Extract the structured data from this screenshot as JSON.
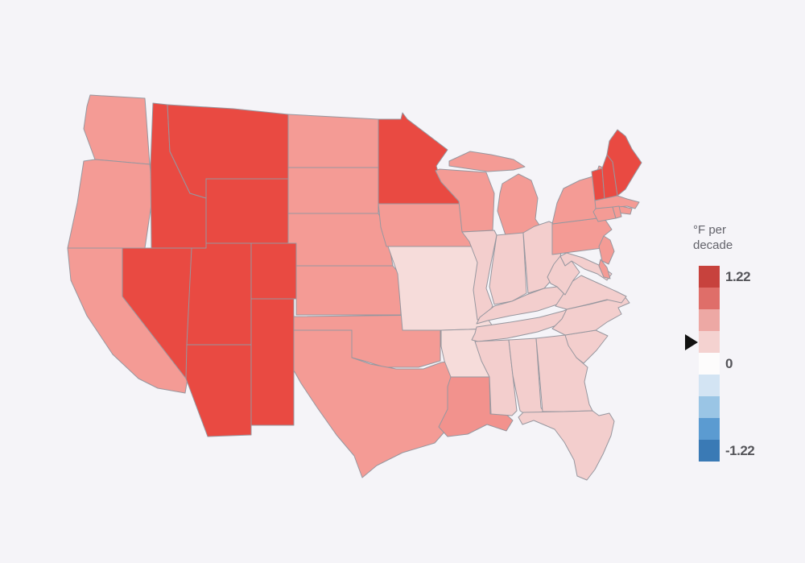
{
  "background": "#f5f4f8",
  "legend": {
    "title_line1": "°F per",
    "title_line2": "decade",
    "colors": [
      "#c7423d",
      "#df6e69",
      "#eda8a4",
      "#f4d2d0",
      "#fdfcfc",
      "#d3e4f3",
      "#9ac5e5",
      "#5b9bd1",
      "#3a7ab5"
    ],
    "ticks": [
      {
        "label": "1.22",
        "band": 0
      },
      {
        "label": "0",
        "band": 4
      },
      {
        "label": "-1.22",
        "band": 8
      }
    ],
    "marker": {
      "band": 3,
      "color": "#111111"
    }
  },
  "chart_data": {
    "type": "heatmap",
    "subtype": "us-state-choropleth",
    "title": "",
    "unit_label": "°F per decade",
    "scale": {
      "max": 1.22,
      "mid": 0,
      "min": -1.22,
      "palette_type": "diverging-red-blue",
      "bands": 9
    },
    "palette": {
      "strong-red": "#e94a42",
      "salmon": "#f49b95",
      "deep-salmon": "#f2928d",
      "light-pink": "#f3cecd",
      "pale-pink": "#f6dcda"
    },
    "states": {
      "WA": "salmon",
      "OR": "salmon",
      "CA": "salmon",
      "ID": "strong-red",
      "NV": "strong-red",
      "UT": "strong-red",
      "AZ": "strong-red",
      "MT": "strong-red",
      "WY": "strong-red",
      "CO": "strong-red",
      "NM": "strong-red",
      "ND": "salmon",
      "SD": "salmon",
      "NE": "salmon",
      "KS": "salmon",
      "OK": "salmon",
      "TX": "salmon",
      "MN": "strong-red",
      "IA": "salmon",
      "MO": "pale-pink",
      "AR": "pale-pink",
      "LA": "deep-salmon",
      "WI": "salmon",
      "MI": "salmon",
      "IL": "light-pink",
      "IN": "light-pink",
      "OH": "light-pink",
      "KY": "light-pink",
      "TN": "light-pink",
      "MS": "light-pink",
      "AL": "light-pink",
      "GA": "light-pink",
      "FL": "light-pink",
      "SC": "light-pink",
      "NC": "light-pink",
      "VA": "light-pink",
      "WV": "light-pink",
      "MD": "light-pink",
      "DE": "salmon",
      "NJ": "salmon",
      "PA": "salmon",
      "NY": "salmon",
      "CT": "salmon",
      "RI": "salmon",
      "MA": "salmon",
      "VT": "strong-red",
      "NH": "strong-red",
      "ME": "strong-red"
    }
  }
}
